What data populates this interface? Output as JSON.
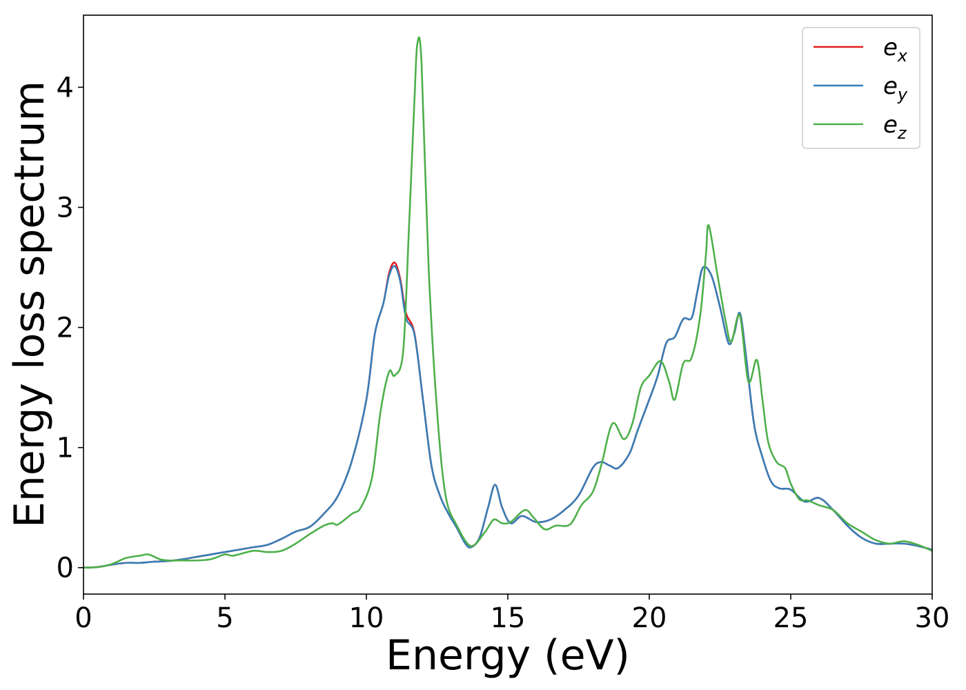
{
  "chart_data": {
    "type": "line",
    "title": "",
    "xlabel": "Energy (eV)",
    "ylabel": "Energy loss spectrum",
    "xlim": [
      0,
      30
    ],
    "ylim": [
      -0.22,
      4.6
    ],
    "xticks": [
      0,
      5,
      10,
      15,
      20,
      25,
      30
    ],
    "yticks": [
      0,
      1,
      2,
      3,
      4
    ],
    "grid": false,
    "legend_position": "top-right",
    "series": [
      {
        "name": "e_x",
        "legend_base": "e",
        "legend_sub": "x",
        "color": "#e41a1c",
        "points": [
          [
            0,
            0
          ],
          [
            0.5,
            0.005
          ],
          [
            1,
            0.025
          ],
          [
            1.5,
            0.04
          ],
          [
            2,
            0.04
          ],
          [
            2.5,
            0.05
          ],
          [
            3,
            0.055
          ],
          [
            3.5,
            0.07
          ],
          [
            4,
            0.09
          ],
          [
            4.5,
            0.11
          ],
          [
            5,
            0.13
          ],
          [
            5.5,
            0.15
          ],
          [
            6,
            0.17
          ],
          [
            6.5,
            0.19
          ],
          [
            7,
            0.24
          ],
          [
            7.5,
            0.3
          ],
          [
            8,
            0.34
          ],
          [
            8.5,
            0.45
          ],
          [
            9,
            0.6
          ],
          [
            9.5,
            0.9
          ],
          [
            10,
            1.4
          ],
          [
            10.3,
            1.95
          ],
          [
            10.6,
            2.2
          ],
          [
            10.8,
            2.45
          ],
          [
            11,
            2.54
          ],
          [
            11.2,
            2.4
          ],
          [
            11.4,
            2.12
          ],
          [
            11.7,
            1.95
          ],
          [
            12,
            1.4
          ],
          [
            12.3,
            0.85
          ],
          [
            12.6,
            0.6
          ],
          [
            12.9,
            0.45
          ],
          [
            13.2,
            0.33
          ],
          [
            13.5,
            0.2
          ],
          [
            13.7,
            0.17
          ],
          [
            14,
            0.25
          ],
          [
            14.3,
            0.5
          ],
          [
            14.55,
            0.69
          ],
          [
            14.8,
            0.5
          ],
          [
            15.1,
            0.37
          ],
          [
            15.5,
            0.43
          ],
          [
            16,
            0.38
          ],
          [
            16.5,
            0.4
          ],
          [
            17,
            0.48
          ],
          [
            17.5,
            0.6
          ],
          [
            18,
            0.83
          ],
          [
            18.3,
            0.88
          ],
          [
            18.6,
            0.85
          ],
          [
            18.9,
            0.83
          ],
          [
            19.3,
            0.95
          ],
          [
            19.6,
            1.15
          ],
          [
            20,
            1.4
          ],
          [
            20.3,
            1.6
          ],
          [
            20.6,
            1.87
          ],
          [
            20.9,
            1.92
          ],
          [
            21.2,
            2.07
          ],
          [
            21.5,
            2.08
          ],
          [
            21.7,
            2.3
          ],
          [
            21.9,
            2.5
          ],
          [
            22.2,
            2.43
          ],
          [
            22.5,
            2.17
          ],
          [
            22.8,
            1.87
          ],
          [
            23,
            1.95
          ],
          [
            23.2,
            2.12
          ],
          [
            23.4,
            1.8
          ],
          [
            23.7,
            1.2
          ],
          [
            24,
            0.92
          ],
          [
            24.3,
            0.72
          ],
          [
            24.6,
            0.66
          ],
          [
            25,
            0.65
          ],
          [
            25.5,
            0.55
          ],
          [
            26,
            0.58
          ],
          [
            26.5,
            0.48
          ],
          [
            27,
            0.35
          ],
          [
            27.5,
            0.25
          ],
          [
            28,
            0.2
          ],
          [
            28.5,
            0.2
          ],
          [
            29,
            0.2
          ],
          [
            29.5,
            0.18
          ],
          [
            30,
            0.15
          ]
        ]
      },
      {
        "name": "e_y",
        "legend_base": "e",
        "legend_sub": "y",
        "color": "#377eb8",
        "points": [
          [
            0,
            0
          ],
          [
            0.5,
            0.005
          ],
          [
            1,
            0.025
          ],
          [
            1.5,
            0.04
          ],
          [
            2,
            0.04
          ],
          [
            2.5,
            0.05
          ],
          [
            3,
            0.055
          ],
          [
            3.5,
            0.07
          ],
          [
            4,
            0.09
          ],
          [
            4.5,
            0.11
          ],
          [
            5,
            0.13
          ],
          [
            5.5,
            0.15
          ],
          [
            6,
            0.17
          ],
          [
            6.5,
            0.19
          ],
          [
            7,
            0.24
          ],
          [
            7.5,
            0.3
          ],
          [
            8,
            0.34
          ],
          [
            8.5,
            0.45
          ],
          [
            9,
            0.6
          ],
          [
            9.5,
            0.9
          ],
          [
            10,
            1.4
          ],
          [
            10.3,
            1.95
          ],
          [
            10.6,
            2.2
          ],
          [
            10.8,
            2.43
          ],
          [
            11,
            2.51
          ],
          [
            11.2,
            2.38
          ],
          [
            11.4,
            2.08
          ],
          [
            11.7,
            1.94
          ],
          [
            12,
            1.4
          ],
          [
            12.3,
            0.85
          ],
          [
            12.6,
            0.6
          ],
          [
            12.9,
            0.45
          ],
          [
            13.2,
            0.33
          ],
          [
            13.5,
            0.2
          ],
          [
            13.7,
            0.17
          ],
          [
            14,
            0.25
          ],
          [
            14.3,
            0.5
          ],
          [
            14.55,
            0.69
          ],
          [
            14.8,
            0.5
          ],
          [
            15.1,
            0.37
          ],
          [
            15.5,
            0.43
          ],
          [
            16,
            0.38
          ],
          [
            16.5,
            0.4
          ],
          [
            17,
            0.48
          ],
          [
            17.5,
            0.6
          ],
          [
            18,
            0.83
          ],
          [
            18.3,
            0.88
          ],
          [
            18.6,
            0.85
          ],
          [
            18.9,
            0.83
          ],
          [
            19.3,
            0.95
          ],
          [
            19.6,
            1.15
          ],
          [
            20,
            1.4
          ],
          [
            20.3,
            1.6
          ],
          [
            20.6,
            1.87
          ],
          [
            20.9,
            1.92
          ],
          [
            21.2,
            2.07
          ],
          [
            21.5,
            2.08
          ],
          [
            21.7,
            2.3
          ],
          [
            21.9,
            2.5
          ],
          [
            22.2,
            2.43
          ],
          [
            22.5,
            2.17
          ],
          [
            22.8,
            1.87
          ],
          [
            23,
            1.95
          ],
          [
            23.2,
            2.12
          ],
          [
            23.4,
            1.8
          ],
          [
            23.7,
            1.2
          ],
          [
            24,
            0.92
          ],
          [
            24.3,
            0.72
          ],
          [
            24.6,
            0.66
          ],
          [
            25,
            0.65
          ],
          [
            25.5,
            0.55
          ],
          [
            26,
            0.58
          ],
          [
            26.5,
            0.48
          ],
          [
            27,
            0.35
          ],
          [
            27.5,
            0.25
          ],
          [
            28,
            0.2
          ],
          [
            28.5,
            0.2
          ],
          [
            29,
            0.2
          ],
          [
            29.5,
            0.18
          ],
          [
            30,
            0.15
          ]
        ]
      },
      {
        "name": "e_z",
        "legend_base": "e",
        "legend_sub": "z",
        "color": "#4daf4a",
        "points": [
          [
            0,
            0
          ],
          [
            0.5,
            0.005
          ],
          [
            1,
            0.03
          ],
          [
            1.5,
            0.08
          ],
          [
            2,
            0.1
          ],
          [
            2.3,
            0.11
          ],
          [
            2.7,
            0.07
          ],
          [
            3,
            0.06
          ],
          [
            3.5,
            0.06
          ],
          [
            4,
            0.06
          ],
          [
            4.5,
            0.07
          ],
          [
            5,
            0.11
          ],
          [
            5.3,
            0.1
          ],
          [
            6,
            0.14
          ],
          [
            6.5,
            0.13
          ],
          [
            7,
            0.14
          ],
          [
            7.5,
            0.2
          ],
          [
            8,
            0.28
          ],
          [
            8.5,
            0.35
          ],
          [
            8.8,
            0.37
          ],
          [
            9,
            0.36
          ],
          [
            9.5,
            0.45
          ],
          [
            9.8,
            0.5
          ],
          [
            10.2,
            0.75
          ],
          [
            10.5,
            1.3
          ],
          [
            10.8,
            1.63
          ],
          [
            11,
            1.6
          ],
          [
            11.3,
            1.8
          ],
          [
            11.5,
            2.8
          ],
          [
            11.7,
            3.9
          ],
          [
            11.8,
            4.36
          ],
          [
            11.95,
            4.2
          ],
          [
            12.2,
            2.5
          ],
          [
            12.5,
            1.3
          ],
          [
            12.8,
            0.6
          ],
          [
            13.2,
            0.35
          ],
          [
            13.7,
            0.18
          ],
          [
            14.2,
            0.3
          ],
          [
            14.5,
            0.4
          ],
          [
            14.8,
            0.37
          ],
          [
            15.1,
            0.38
          ],
          [
            15.6,
            0.48
          ],
          [
            15.9,
            0.42
          ],
          [
            16.3,
            0.32
          ],
          [
            16.7,
            0.35
          ],
          [
            17.2,
            0.36
          ],
          [
            17.6,
            0.52
          ],
          [
            18,
            0.63
          ],
          [
            18.3,
            0.85
          ],
          [
            18.7,
            1.2
          ],
          [
            19.1,
            1.07
          ],
          [
            19.4,
            1.2
          ],
          [
            19.7,
            1.5
          ],
          [
            20,
            1.6
          ],
          [
            20.4,
            1.72
          ],
          [
            20.7,
            1.55
          ],
          [
            20.9,
            1.4
          ],
          [
            21.2,
            1.7
          ],
          [
            21.5,
            1.75
          ],
          [
            21.8,
            2.1
          ],
          [
            22,
            2.6
          ],
          [
            22.1,
            2.85
          ],
          [
            22.4,
            2.45
          ],
          [
            22.7,
            2.05
          ],
          [
            22.9,
            1.88
          ],
          [
            23.2,
            2.1
          ],
          [
            23.5,
            1.55
          ],
          [
            23.8,
            1.73
          ],
          [
            24,
            1.4
          ],
          [
            24.2,
            1.05
          ],
          [
            24.5,
            0.88
          ],
          [
            24.8,
            0.83
          ],
          [
            25,
            0.7
          ],
          [
            25.3,
            0.57
          ],
          [
            25.6,
            0.56
          ],
          [
            26,
            0.52
          ],
          [
            26.5,
            0.48
          ],
          [
            27,
            0.37
          ],
          [
            27.5,
            0.3
          ],
          [
            28,
            0.23
          ],
          [
            28.5,
            0.2
          ],
          [
            29,
            0.22
          ],
          [
            29.5,
            0.19
          ],
          [
            30,
            0.14
          ]
        ]
      }
    ]
  }
}
